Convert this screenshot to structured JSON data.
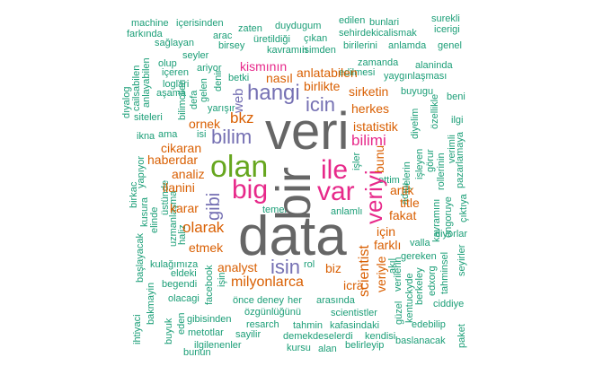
{
  "colors": {
    "teal": "#1b9e77",
    "orange": "#d95f02",
    "purple": "#7570b3",
    "magenta": "#e7298a",
    "green": "#66a61e",
    "gray": "#666666"
  },
  "words": [
    {
      "t": "machine",
      "c": "teal",
      "v": false
    },
    {
      "t": "içerisinden",
      "c": "teal",
      "v": false
    },
    {
      "t": "farkında",
      "c": "teal",
      "v": false
    },
    {
      "t": "sağlayan",
      "c": "teal",
      "v": false
    },
    {
      "t": "arac",
      "c": "teal",
      "v": false
    },
    {
      "t": "zaten",
      "c": "teal",
      "v": false
    },
    {
      "t": "birsey",
      "c": "teal",
      "v": false
    },
    {
      "t": "duydugum",
      "c": "teal",
      "v": false
    },
    {
      "t": "üretildiği",
      "c": "teal",
      "v": false
    },
    {
      "t": "çıkan",
      "c": "teal",
      "v": false
    },
    {
      "t": "edilen",
      "c": "teal",
      "v": false
    },
    {
      "t": "bunlari",
      "c": "teal",
      "v": false
    },
    {
      "t": "surekli",
      "c": "teal",
      "v": false
    },
    {
      "t": "icerigi",
      "c": "teal",
      "v": false
    },
    {
      "t": "sehirdekicalismak",
      "c": "teal",
      "v": false
    },
    {
      "t": "birilerini",
      "c": "teal",
      "v": false
    },
    {
      "t": "anlamda",
      "c": "teal",
      "v": false
    },
    {
      "t": "genel",
      "c": "teal",
      "v": false
    },
    {
      "t": "kavramın",
      "c": "teal",
      "v": false
    },
    {
      "t": "isimden",
      "c": "teal",
      "v": false
    },
    {
      "t": "seyler",
      "c": "teal",
      "v": false
    },
    {
      "t": "olup",
      "c": "teal",
      "v": false
    },
    {
      "t": "içeren",
      "c": "teal",
      "v": false
    },
    {
      "t": "ariyor",
      "c": "teal",
      "v": false
    },
    {
      "t": "loglari",
      "c": "teal",
      "v": false
    },
    {
      "t": "zamanda",
      "c": "teal",
      "v": false
    },
    {
      "t": "edilmesi",
      "c": "teal",
      "v": false
    },
    {
      "t": "alaninda",
      "c": "teal",
      "v": false
    },
    {
      "t": "yaygınlaşması",
      "c": "teal",
      "v": false
    },
    {
      "t": "buyugu",
      "c": "teal",
      "v": false
    },
    {
      "t": "beni",
      "c": "teal",
      "v": false
    },
    {
      "t": "ilgi",
      "c": "teal",
      "v": false
    },
    {
      "t": "cailsabilen",
      "c": "teal",
      "v": true
    },
    {
      "t": "anlayabilen",
      "c": "teal",
      "v": true
    },
    {
      "t": "dıyalog",
      "c": "teal",
      "v": true
    },
    {
      "t": "siteleri",
      "c": "teal",
      "v": false
    },
    {
      "t": "bilimcileri",
      "c": "teal",
      "v": true
    },
    {
      "t": "defa",
      "c": "teal",
      "v": true
    },
    {
      "t": "gelen",
      "c": "teal",
      "v": true
    },
    {
      "t": "denir",
      "c": "teal",
      "v": true
    },
    {
      "t": "aşama",
      "c": "teal",
      "v": false
    },
    {
      "t": "betki",
      "c": "teal",
      "v": false
    },
    {
      "t": "yarışır",
      "c": "teal",
      "v": false
    },
    {
      "t": "ama",
      "c": "teal",
      "v": false
    },
    {
      "t": "isi",
      "c": "teal",
      "v": false
    },
    {
      "t": "ikna",
      "c": "teal",
      "v": false
    },
    {
      "t": "yapıyor",
      "c": "teal",
      "v": true
    },
    {
      "t": "kusura",
      "c": "teal",
      "v": true
    },
    {
      "t": "elinde",
      "c": "teal",
      "v": true
    },
    {
      "t": "üstünde",
      "c": "teal",
      "v": true
    },
    {
      "t": "birkac",
      "c": "teal",
      "v": true
    },
    {
      "t": "uzmanlaşma",
      "c": "teal",
      "v": true
    },
    {
      "t": "haliz",
      "c": "teal",
      "v": true
    },
    {
      "t": "başlayacak",
      "c": "teal",
      "v": true
    },
    {
      "t": "kulağımıza",
      "c": "teal",
      "v": false
    },
    {
      "t": "eldeki",
      "c": "teal",
      "v": false
    },
    {
      "t": "begendi",
      "c": "teal",
      "v": false
    },
    {
      "t": "olacagi",
      "c": "teal",
      "v": false
    },
    {
      "t": "bakmayin",
      "c": "teal",
      "v": true
    },
    {
      "t": "ihtiyaci",
      "c": "teal",
      "v": true
    },
    {
      "t": "buyuk",
      "c": "teal",
      "v": true
    },
    {
      "t": "eden",
      "c": "teal",
      "v": true
    },
    {
      "t": "gibisinden",
      "c": "teal",
      "v": false
    },
    {
      "t": "metotlar",
      "c": "teal",
      "v": false
    },
    {
      "t": "ilgilenenler",
      "c": "teal",
      "v": false
    },
    {
      "t": "bunun",
      "c": "teal",
      "v": false
    },
    {
      "t": "facebook",
      "c": "teal",
      "v": true
    },
    {
      "t": "işin",
      "c": "teal",
      "v": true
    },
    {
      "t": "önce",
      "c": "teal",
      "v": false
    },
    {
      "t": "deney",
      "c": "teal",
      "v": false
    },
    {
      "t": "her",
      "c": "teal",
      "v": false
    },
    {
      "t": "özgünlüğünü",
      "c": "teal",
      "v": false
    },
    {
      "t": "resarch",
      "c": "teal",
      "v": false
    },
    {
      "t": "sayilir",
      "c": "teal",
      "v": false
    },
    {
      "t": "tahmin",
      "c": "teal",
      "v": false
    },
    {
      "t": "kafasindaki",
      "c": "teal",
      "v": false
    },
    {
      "t": "demekdeselerdi",
      "c": "teal",
      "v": false
    },
    {
      "t": "kendisi",
      "c": "teal",
      "v": false
    },
    {
      "t": "kursu",
      "c": "teal",
      "v": false
    },
    {
      "t": "alan",
      "c": "teal",
      "v": false
    },
    {
      "t": "belirleyip",
      "c": "teal",
      "v": false
    },
    {
      "t": "scientistler",
      "c": "teal",
      "v": false
    },
    {
      "t": "arasında",
      "c": "teal",
      "v": false
    },
    {
      "t": "rol",
      "c": "teal",
      "v": false
    },
    {
      "t": "akıl",
      "c": "teal",
      "v": true
    },
    {
      "t": "temel",
      "c": "teal",
      "v": false
    },
    {
      "t": "anlamlı",
      "c": "teal",
      "v": false
    },
    {
      "t": "gereken",
      "c": "teal",
      "v": false
    },
    {
      "t": "valla",
      "c": "teal",
      "v": false
    },
    {
      "t": "diyorlar",
      "c": "teal",
      "v": false
    },
    {
      "t": "tahminsel",
      "c": "teal",
      "v": true
    },
    {
      "t": "seyirler",
      "c": "teal",
      "v": true
    },
    {
      "t": "edxorg",
      "c": "teal",
      "v": true
    },
    {
      "t": "berkeley",
      "c": "teal",
      "v": true
    },
    {
      "t": "kentuckyde",
      "c": "teal",
      "v": true
    },
    {
      "t": "güzel",
      "c": "teal",
      "v": true
    },
    {
      "t": "verilerin",
      "c": "teal",
      "v": true
    },
    {
      "t": "ciddiye",
      "c": "teal",
      "v": false
    },
    {
      "t": "edebilip",
      "c": "teal",
      "v": false
    },
    {
      "t": "paket",
      "c": "teal",
      "v": true
    },
    {
      "t": "baslanacak",
      "c": "teal",
      "v": false
    },
    {
      "t": "iyelerin",
      "c": "teal",
      "v": true
    },
    {
      "t": "ettim",
      "c": "teal",
      "v": false
    },
    {
      "t": "adını",
      "c": "teal",
      "v": true
    },
    {
      "t": "işleyen",
      "c": "teal",
      "v": true
    },
    {
      "t": "görur",
      "c": "teal",
      "v": true
    },
    {
      "t": "rollerinin",
      "c": "teal",
      "v": true
    },
    {
      "t": "ongoruye",
      "c": "teal",
      "v": true
    },
    {
      "t": "kavramını",
      "c": "teal",
      "v": true
    },
    {
      "t": "çıktıya",
      "c": "teal",
      "v": true
    },
    {
      "t": "pazarlamaya",
      "c": "teal",
      "v": true
    },
    {
      "t": "verimli",
      "c": "teal",
      "v": true
    },
    {
      "t": "özellikle",
      "c": "teal",
      "v": true
    },
    {
      "t": "diyelim",
      "c": "teal",
      "v": true
    },
    {
      "t": "işler",
      "c": "teal",
      "v": true
    },
    {
      "t": "veri",
      "c": "gray",
      "v": false
    },
    {
      "t": "data",
      "c": "gray",
      "v": false
    },
    {
      "t": "bir",
      "c": "gray",
      "v": true
    },
    {
      "t": "olan",
      "c": "green",
      "v": false
    },
    {
      "t": "big",
      "c": "magenta",
      "v": false
    },
    {
      "t": "ile",
      "c": "magenta",
      "v": false
    },
    {
      "t": "var",
      "c": "magenta",
      "v": false
    },
    {
      "t": "veriyi",
      "c": "magenta",
      "v": true
    },
    {
      "t": "hangi",
      "c": "purple",
      "v": false
    },
    {
      "t": "icin",
      "c": "purple",
      "v": false
    },
    {
      "t": "bilim",
      "c": "purple",
      "v": false
    },
    {
      "t": "gibi",
      "c": "purple",
      "v": true
    },
    {
      "t": "isin",
      "c": "purple",
      "v": false
    },
    {
      "t": "web",
      "c": "purple",
      "v": true
    },
    {
      "t": "kismının",
      "c": "magenta",
      "v": false
    },
    {
      "t": "anlatabilen",
      "c": "orange",
      "v": false
    },
    {
      "t": "nasıl",
      "c": "orange",
      "v": false
    },
    {
      "t": "birlikte",
      "c": "orange",
      "v": false
    },
    {
      "t": "sirketin",
      "c": "orange",
      "v": false
    },
    {
      "t": "herkes",
      "c": "orange",
      "v": false
    },
    {
      "t": "bkz",
      "c": "orange",
      "v": false
    },
    {
      "t": "istatistik",
      "c": "orange",
      "v": false
    },
    {
      "t": "bilimi",
      "c": "magenta",
      "v": false
    },
    {
      "t": "ornek",
      "c": "orange",
      "v": false
    },
    {
      "t": "cikaran",
      "c": "orange",
      "v": false
    },
    {
      "t": "haberdar",
      "c": "orange",
      "v": false
    },
    {
      "t": "analiz",
      "c": "orange",
      "v": false
    },
    {
      "t": "ilanini",
      "c": "orange",
      "v": false
    },
    {
      "t": "karar",
      "c": "orange",
      "v": false
    },
    {
      "t": "olarak",
      "c": "orange",
      "v": false
    },
    {
      "t": "etmek",
      "c": "orange",
      "v": false
    },
    {
      "t": "analyst",
      "c": "orange",
      "v": false
    },
    {
      "t": "milyonlarca",
      "c": "orange",
      "v": false
    },
    {
      "t": "biz",
      "c": "orange",
      "v": false
    },
    {
      "t": "icra",
      "c": "orange",
      "v": false
    },
    {
      "t": "scientist",
      "c": "orange",
      "v": true
    },
    {
      "t": "veriyle",
      "c": "orange",
      "v": true
    },
    {
      "t": "bunu",
      "c": "orange",
      "v": true
    },
    {
      "t": "artik",
      "c": "orange",
      "v": false
    },
    {
      "t": "title",
      "c": "orange",
      "v": false
    },
    {
      "t": "fakat",
      "c": "orange",
      "v": false
    },
    {
      "t": "için",
      "c": "orange",
      "v": false
    },
    {
      "t": "farklı",
      "c": "orange",
      "v": false
    }
  ]
}
